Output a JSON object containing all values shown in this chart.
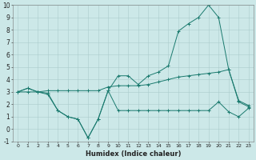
{
  "xlabel": "Humidex (Indice chaleur)",
  "ylabel": "",
  "x": [
    0,
    1,
    2,
    3,
    4,
    5,
    6,
    7,
    8,
    9,
    10,
    11,
    12,
    13,
    14,
    15,
    16,
    17,
    18,
    19,
    20,
    21,
    22,
    23
  ],
  "line1": [
    3.0,
    3.3,
    3.0,
    2.8,
    1.5,
    1.0,
    0.8,
    -0.7,
    0.8,
    3.1,
    4.3,
    4.3,
    3.6,
    4.3,
    4.6,
    5.1,
    7.9,
    8.5,
    9.0,
    10.0,
    9.0,
    4.8,
    2.2,
    1.8
  ],
  "line2": [
    3.0,
    3.3,
    3.0,
    3.1,
    3.1,
    3.1,
    3.1,
    3.1,
    3.1,
    3.4,
    3.5,
    3.5,
    3.5,
    3.6,
    3.8,
    4.0,
    4.2,
    4.3,
    4.4,
    4.5,
    4.6,
    4.8,
    2.3,
    1.9
  ],
  "line3": [
    3.0,
    3.0,
    3.0,
    2.9,
    1.5,
    1.0,
    0.8,
    -0.7,
    0.8,
    3.1,
    1.5,
    1.5,
    1.5,
    1.5,
    1.5,
    1.5,
    1.5,
    1.5,
    1.5,
    1.5,
    2.2,
    1.4,
    1.0,
    1.7
  ],
  "line_color": "#1a7a6e",
  "bg_color": "#cce8e8",
  "grid_color": "#aacccc",
  "ylim": [
    -1,
    10
  ],
  "xlim": [
    -0.5,
    23.5
  ],
  "yticks": [
    -1,
    0,
    1,
    2,
    3,
    4,
    5,
    6,
    7,
    8,
    9,
    10
  ],
  "xticks": [
    0,
    1,
    2,
    3,
    4,
    5,
    6,
    7,
    8,
    9,
    10,
    11,
    12,
    13,
    14,
    15,
    16,
    17,
    18,
    19,
    20,
    21,
    22,
    23
  ]
}
